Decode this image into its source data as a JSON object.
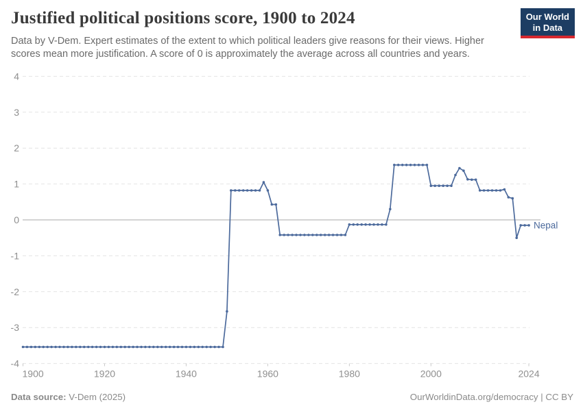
{
  "header": {
    "title": "Justified political positions score, 1900 to 2024",
    "subtitle_line1": "Data by V-Dem. Expert estimates of the extent to which political leaders give reasons for their views. Higher",
    "subtitle_line2": "scores mean more justification. A score of 0 is approximately the average across all countries and years.",
    "logo": {
      "line1": "Our World",
      "line2": "in Data",
      "bg_color": "#1d3d63",
      "accent_color": "#d7282f"
    }
  },
  "chart_data": {
    "type": "line",
    "title": "Justified political positions score, 1900 to 2024",
    "xlabel": "",
    "ylabel": "",
    "xlim": [
      1900,
      2024
    ],
    "ylim": [
      -4,
      4
    ],
    "x_ticks": [
      1900,
      1920,
      1940,
      1960,
      1980,
      2000,
      2024
    ],
    "y_ticks": [
      -4,
      -3,
      -2,
      -1,
      0,
      1,
      2,
      3,
      4
    ],
    "grid": "horizontal-dashed, solid zero line",
    "legend_position": "end-of-line label",
    "colors": {
      "line": "#4C6A9C",
      "gridline": "#e4e4e4",
      "zero_line": "#a8a8a8",
      "tick_label": "#8f8f8f"
    },
    "series": [
      {
        "name": "Nepal",
        "color": "#4C6A9C",
        "points": [
          [
            1900,
            -3.54
          ],
          [
            1901,
            -3.54
          ],
          [
            1902,
            -3.54
          ],
          [
            1903,
            -3.54
          ],
          [
            1904,
            -3.54
          ],
          [
            1905,
            -3.54
          ],
          [
            1906,
            -3.54
          ],
          [
            1907,
            -3.54
          ],
          [
            1908,
            -3.54
          ],
          [
            1909,
            -3.54
          ],
          [
            1910,
            -3.54
          ],
          [
            1911,
            -3.54
          ],
          [
            1912,
            -3.54
          ],
          [
            1913,
            -3.54
          ],
          [
            1914,
            -3.54
          ],
          [
            1915,
            -3.54
          ],
          [
            1916,
            -3.54
          ],
          [
            1917,
            -3.54
          ],
          [
            1918,
            -3.54
          ],
          [
            1919,
            -3.54
          ],
          [
            1920,
            -3.54
          ],
          [
            1921,
            -3.54
          ],
          [
            1922,
            -3.54
          ],
          [
            1923,
            -3.54
          ],
          [
            1924,
            -3.54
          ],
          [
            1925,
            -3.54
          ],
          [
            1926,
            -3.54
          ],
          [
            1927,
            -3.54
          ],
          [
            1928,
            -3.54
          ],
          [
            1929,
            -3.54
          ],
          [
            1930,
            -3.54
          ],
          [
            1931,
            -3.54
          ],
          [
            1932,
            -3.54
          ],
          [
            1933,
            -3.54
          ],
          [
            1934,
            -3.54
          ],
          [
            1935,
            -3.54
          ],
          [
            1936,
            -3.54
          ],
          [
            1937,
            -3.54
          ],
          [
            1938,
            -3.54
          ],
          [
            1939,
            -3.54
          ],
          [
            1940,
            -3.54
          ],
          [
            1941,
            -3.54
          ],
          [
            1942,
            -3.54
          ],
          [
            1943,
            -3.54
          ],
          [
            1944,
            -3.54
          ],
          [
            1945,
            -3.54
          ],
          [
            1946,
            -3.54
          ],
          [
            1947,
            -3.54
          ],
          [
            1948,
            -3.54
          ],
          [
            1949,
            -3.54
          ],
          [
            1950,
            -2.55
          ],
          [
            1951,
            0.82
          ],
          [
            1952,
            0.82
          ],
          [
            1953,
            0.82
          ],
          [
            1954,
            0.82
          ],
          [
            1955,
            0.82
          ],
          [
            1956,
            0.82
          ],
          [
            1957,
            0.82
          ],
          [
            1958,
            0.82
          ],
          [
            1959,
            1.05
          ],
          [
            1960,
            0.82
          ],
          [
            1961,
            0.43
          ],
          [
            1962,
            0.43
          ],
          [
            1963,
            -0.42
          ],
          [
            1964,
            -0.42
          ],
          [
            1965,
            -0.42
          ],
          [
            1966,
            -0.42
          ],
          [
            1967,
            -0.42
          ],
          [
            1968,
            -0.42
          ],
          [
            1969,
            -0.42
          ],
          [
            1970,
            -0.42
          ],
          [
            1971,
            -0.42
          ],
          [
            1972,
            -0.42
          ],
          [
            1973,
            -0.42
          ],
          [
            1974,
            -0.42
          ],
          [
            1975,
            -0.42
          ],
          [
            1976,
            -0.42
          ],
          [
            1977,
            -0.42
          ],
          [
            1978,
            -0.42
          ],
          [
            1979,
            -0.42
          ],
          [
            1980,
            -0.13
          ],
          [
            1981,
            -0.13
          ],
          [
            1982,
            -0.13
          ],
          [
            1983,
            -0.13
          ],
          [
            1984,
            -0.13
          ],
          [
            1985,
            -0.13
          ],
          [
            1986,
            -0.13
          ],
          [
            1987,
            -0.13
          ],
          [
            1988,
            -0.13
          ],
          [
            1989,
            -0.13
          ],
          [
            1990,
            0.3
          ],
          [
            1991,
            1.53
          ],
          [
            1992,
            1.53
          ],
          [
            1993,
            1.53
          ],
          [
            1994,
            1.53
          ],
          [
            1995,
            1.53
          ],
          [
            1996,
            1.53
          ],
          [
            1997,
            1.53
          ],
          [
            1998,
            1.53
          ],
          [
            1999,
            1.53
          ],
          [
            2000,
            0.95
          ],
          [
            2001,
            0.95
          ],
          [
            2002,
            0.95
          ],
          [
            2003,
            0.95
          ],
          [
            2004,
            0.95
          ],
          [
            2005,
            0.95
          ],
          [
            2006,
            1.25
          ],
          [
            2007,
            1.44
          ],
          [
            2008,
            1.37
          ],
          [
            2009,
            1.13
          ],
          [
            2010,
            1.12
          ],
          [
            2011,
            1.12
          ],
          [
            2012,
            0.82
          ],
          [
            2013,
            0.82
          ],
          [
            2014,
            0.82
          ],
          [
            2015,
            0.82
          ],
          [
            2016,
            0.82
          ],
          [
            2017,
            0.82
          ],
          [
            2018,
            0.85
          ],
          [
            2019,
            0.63
          ],
          [
            2020,
            0.6
          ],
          [
            2021,
            -0.5
          ],
          [
            2022,
            -0.15
          ],
          [
            2023,
            -0.15
          ],
          [
            2024,
            -0.15
          ]
        ]
      }
    ]
  },
  "footer": {
    "source_label": "Data source:",
    "source_value": "V-Dem (2025)",
    "url": "OurWorldinData.org/democracy",
    "separator": " | ",
    "license": "CC BY"
  }
}
